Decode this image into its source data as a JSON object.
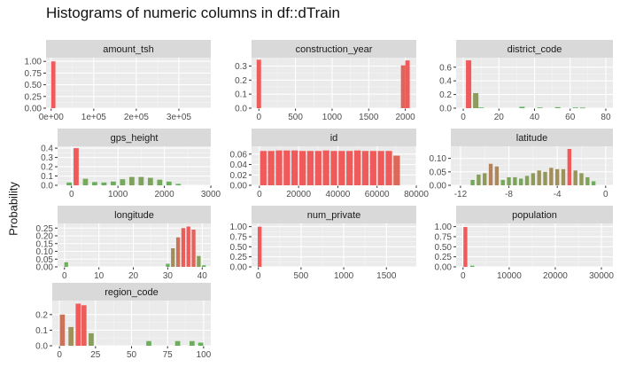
{
  "chart_data": {
    "type": "bar",
    "title": "Histograms of numeric columns in df::dTrain",
    "ylabel": "Probability",
    "xlabel": "",
    "grid": true,
    "legend": "none",
    "colors": {
      "low": "#5cb85c",
      "mid": "#a88b5a",
      "high": "#f05a5a"
    },
    "panels": [
      {
        "name": "amount_tsh",
        "xlim": [
          -12000,
          375000
        ],
        "ylim": [
          0,
          1.08
        ],
        "xticks": [
          0,
          100000,
          200000,
          300000
        ],
        "xtick_labels": [
          "0e+00",
          "1e+05",
          "2e+05",
          "3e+05"
        ],
        "yticks": [
          0,
          0.25,
          0.5,
          0.75,
          1.0
        ],
        "ytick_labels": [
          "0.00",
          "0.25",
          "0.50",
          "0.75",
          "1.00"
        ],
        "bin_width": 10000,
        "bars": [
          [
            5000,
            1.0
          ]
        ]
      },
      {
        "name": "construction_year",
        "xlim": [
          -100,
          2150
        ],
        "ylim": [
          0,
          0.36
        ],
        "xticks": [
          0,
          500,
          1000,
          1500,
          2000
        ],
        "xtick_labels": [
          "0",
          "500",
          "1000",
          "1500",
          "2000"
        ],
        "yticks": [
          0,
          0.1,
          0.2,
          0.3
        ],
        "ytick_labels": [
          "0.0",
          "0.1",
          "0.2",
          "0.3"
        ],
        "bin_width": 60,
        "bars": [
          [
            0,
            0.345
          ],
          [
            1970,
            0.305
          ],
          [
            2030,
            0.34
          ]
        ]
      },
      {
        "name": "district_code",
        "xlim": [
          -4,
          84
        ],
        "ylim": [
          0,
          0.74
        ],
        "xticks": [
          0,
          20,
          40,
          60,
          80
        ],
        "xtick_labels": [
          "0",
          "20",
          "40",
          "60",
          "80"
        ],
        "yticks": [
          0,
          0.2,
          0.4,
          0.6
        ],
        "ytick_labels": [
          "0.0",
          "0.2",
          "0.4",
          "0.6"
        ],
        "bin_width": 3,
        "bars": [
          [
            3,
            0.7
          ],
          [
            7,
            0.22
          ],
          [
            10,
            0.01
          ],
          [
            33,
            0.02
          ],
          [
            43,
            0.01
          ],
          [
            53,
            0.015
          ],
          [
            63,
            0.01
          ],
          [
            67,
            0.008
          ]
        ]
      },
      {
        "name": "gps_height",
        "xlim": [
          -300,
          3000
        ],
        "ylim": [
          0,
          0.42
        ],
        "xticks": [
          0,
          1000,
          2000,
          3000
        ],
        "xtick_labels": [
          "0",
          "1000",
          "2000",
          "3000"
        ],
        "yticks": [
          0,
          0.1,
          0.2,
          0.3,
          0.4
        ],
        "ytick_labels": [
          "0.0",
          "0.1",
          "0.2",
          "0.3",
          "0.4"
        ],
        "bin_width": 110,
        "bars": [
          [
            -50,
            0.03
          ],
          [
            100,
            0.4
          ],
          [
            300,
            0.07
          ],
          [
            500,
            0.035
          ],
          [
            700,
            0.03
          ],
          [
            900,
            0.04
          ],
          [
            1100,
            0.065
          ],
          [
            1300,
            0.09
          ],
          [
            1500,
            0.09
          ],
          [
            1700,
            0.08
          ],
          [
            1900,
            0.06
          ],
          [
            2100,
            0.04
          ],
          [
            2300,
            0.015
          ]
        ]
      },
      {
        "name": "id",
        "xlim": [
          -4000,
          80000
        ],
        "ylim": [
          0,
          0.075
        ],
        "xticks": [
          0,
          20000,
          40000,
          60000,
          80000
        ],
        "xtick_labels": [
          "0",
          "20000",
          "40000",
          "60000",
          "80000"
        ],
        "yticks": [
          0,
          0.02,
          0.04,
          0.06
        ],
        "ytick_labels": [
          "0.00",
          "0.02",
          "0.04",
          "0.06"
        ],
        "bin_width": 3300,
        "bars": [
          [
            2000,
            0.066
          ],
          [
            6000,
            0.066
          ],
          [
            10000,
            0.067
          ],
          [
            14000,
            0.067
          ],
          [
            18000,
            0.067
          ],
          [
            22000,
            0.066
          ],
          [
            26000,
            0.066
          ],
          [
            30000,
            0.066
          ],
          [
            34000,
            0.067
          ],
          [
            38000,
            0.066
          ],
          [
            42000,
            0.066
          ],
          [
            46000,
            0.066
          ],
          [
            50000,
            0.067
          ],
          [
            54000,
            0.066
          ],
          [
            58000,
            0.066
          ],
          [
            62000,
            0.066
          ],
          [
            66000,
            0.066
          ],
          [
            70000,
            0.057
          ]
        ]
      },
      {
        "name": "latitude",
        "xlim": [
          -12.8,
          0.6
        ],
        "ylim": [
          0,
          0.145
        ],
        "xticks": [
          -12,
          -8,
          -4,
          0
        ],
        "xtick_labels": [
          "-12",
          "-8",
          "-4",
          "0"
        ],
        "yticks": [
          0,
          0.05,
          0.1
        ],
        "ytick_labels": [
          "0.00",
          "0.05",
          "0.10"
        ],
        "bin_width": 0.32,
        "bars": [
          [
            -11,
            0.02
          ],
          [
            -10.5,
            0.04
          ],
          [
            -10,
            0.045
          ],
          [
            -9.5,
            0.08
          ],
          [
            -9,
            0.07
          ],
          [
            -8.5,
            0.02
          ],
          [
            -8,
            0.03
          ],
          [
            -7.5,
            0.03
          ],
          [
            -7,
            0.025
          ],
          [
            -6.5,
            0.035
          ],
          [
            -6,
            0.045
          ],
          [
            -5.5,
            0.055
          ],
          [
            -5,
            0.05
          ],
          [
            -4.5,
            0.065
          ],
          [
            -4,
            0.06
          ],
          [
            -3.5,
            0.06
          ],
          [
            -3,
            0.135
          ],
          [
            -2.5,
            0.055
          ],
          [
            -2,
            0.045
          ],
          [
            -1.5,
            0.03
          ],
          [
            -1,
            0.015
          ]
        ]
      },
      {
        "name": "longitude",
        "xlim": [
          -2,
          42.5
        ],
        "ylim": [
          0,
          0.28
        ],
        "xticks": [
          0,
          10,
          20,
          30,
          40
        ],
        "xtick_labels": [
          "0",
          "10",
          "20",
          "30",
          "40"
        ],
        "yticks": [
          0,
          0.05,
          0.1,
          0.15,
          0.2,
          0.25
        ],
        "ytick_labels": [
          "0.00",
          "0.05",
          "0.10",
          "0.15",
          "0.20",
          "0.25"
        ],
        "bin_width": 1.1,
        "bars": [
          [
            0.5,
            0.03
          ],
          [
            30,
            0.02
          ],
          [
            31.5,
            0.12
          ],
          [
            33,
            0.19
          ],
          [
            34.5,
            0.25
          ],
          [
            36,
            0.26
          ],
          [
            37.5,
            0.24
          ],
          [
            39,
            0.07
          ],
          [
            40.5,
            0.01
          ]
        ]
      },
      {
        "name": "num_private",
        "xlim": [
          -80,
          1850
        ],
        "ylim": [
          0,
          1.08
        ],
        "xticks": [
          0,
          500,
          1000,
          1500
        ],
        "xtick_labels": [
          "0",
          "500",
          "1000",
          "1500"
        ],
        "yticks": [
          0,
          0.25,
          0.5,
          0.75,
          1.0
        ],
        "ytick_labels": [
          "0.00",
          "0.25",
          "0.50",
          "0.75",
          "1.00"
        ],
        "bin_width": 45,
        "bars": [
          [
            15,
            1.0
          ]
        ]
      },
      {
        "name": "population",
        "xlim": [
          -1500,
          32500
        ],
        "ylim": [
          0,
          1.08
        ],
        "xticks": [
          0,
          10000,
          20000,
          30000
        ],
        "xtick_labels": [
          "0",
          "10000",
          "20000",
          "30000"
        ],
        "yticks": [
          0,
          0.25,
          0.5,
          0.75,
          1.0
        ],
        "ytick_labels": [
          "0.00",
          "0.25",
          "0.50",
          "0.75",
          "1.00"
        ],
        "bin_width": 850,
        "bars": [
          [
            500,
            0.99
          ],
          [
            2000,
            0.03
          ]
        ]
      },
      {
        "name": "region_code",
        "xlim": [
          -5,
          105
        ],
        "ylim": [
          0,
          0.29
        ],
        "xticks": [
          0,
          25,
          50,
          75,
          100
        ],
        "xtick_labels": [
          "0",
          "25",
          "50",
          "75",
          "100"
        ],
        "yticks": [
          0,
          0.1,
          0.2
        ],
        "ytick_labels": [
          "0.0",
          "0.1",
          "0.2"
        ],
        "bin_width": 3.5,
        "bars": [
          [
            2,
            0.2
          ],
          [
            8,
            0.12
          ],
          [
            13,
            0.27
          ],
          [
            17,
            0.26
          ],
          [
            22,
            0.08
          ],
          [
            62,
            0.03
          ],
          [
            82,
            0.03
          ],
          [
            92,
            0.03
          ],
          [
            98,
            0.02
          ]
        ]
      }
    ]
  }
}
